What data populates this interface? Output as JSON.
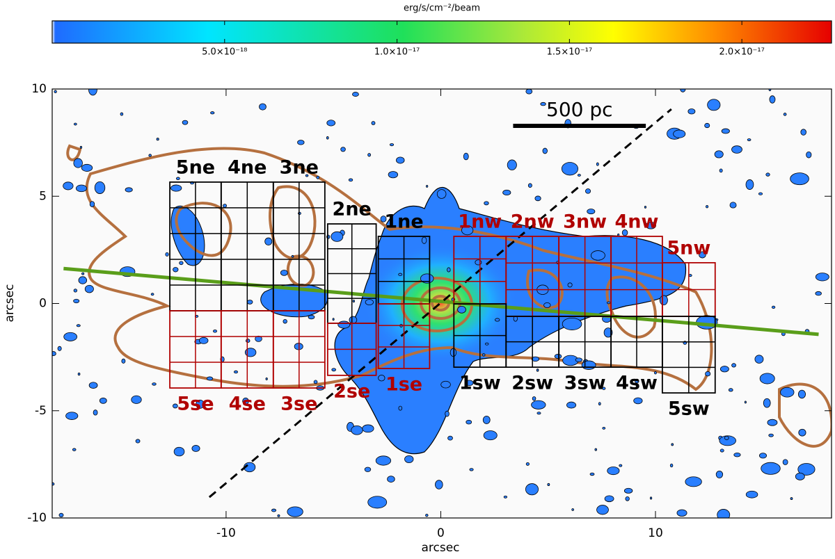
{
  "chart_data": {
    "type": "image",
    "colorbar": {
      "label": "erg/s/cm⁻²/beam",
      "clim": [
        0,
        2.26e-17
      ],
      "ticks": [
        {
          "value": 5e-18,
          "label": "5.0×10⁻¹⁸"
        },
        {
          "value": 1e-17,
          "label": "1.0×10⁻¹⁷"
        },
        {
          "value": 1.5e-17,
          "label": "1.5×10⁻¹⁷"
        },
        {
          "value": 2e-17,
          "label": "2.0×10⁻¹⁷"
        }
      ]
    },
    "xlabel": "arcsec",
    "ylabel": "arcsec",
    "xlim": [
      -18.1,
      18.2
    ],
    "ylim": [
      -10,
      10
    ],
    "xticks": [
      -10,
      0,
      10
    ],
    "yticks": [
      -10,
      -5,
      0,
      5,
      10
    ],
    "regions": [
      {
        "name": "5ne",
        "color": "#000000",
        "x": [
          -12.62,
          -10.23
        ],
        "y": [
          -0.34,
          5.66
        ]
      },
      {
        "name": "4ne",
        "color": "#000000",
        "x": [
          -10.23,
          -7.8
        ],
        "y": [
          -0.34,
          5.66
        ]
      },
      {
        "name": "3ne",
        "color": "#000000",
        "x": [
          -7.8,
          -5.4
        ],
        "y": [
          -0.34,
          5.66
        ]
      },
      {
        "name": "2ne",
        "color": "#000000",
        "x": [
          -5.27,
          -3.01
        ],
        "y": [
          -0.92,
          3.71
        ]
      },
      {
        "name": "1ne",
        "color": "#000000",
        "x": [
          -2.91,
          -0.52
        ],
        "y": [
          -0.02,
          3.13
        ]
      },
      {
        "name": "5se",
        "color": "#b00000",
        "x": [
          -12.62,
          -10.23
        ],
        "y": [
          -3.94,
          -0.34
        ]
      },
      {
        "name": "4se",
        "color": "#b00000",
        "x": [
          -10.23,
          -7.8
        ],
        "y": [
          -3.94,
          -0.34
        ]
      },
      {
        "name": "3se",
        "color": "#b00000",
        "x": [
          -7.8,
          -5.4
        ],
        "y": [
          -3.94,
          -0.34
        ]
      },
      {
        "name": "2se",
        "color": "#b00000",
        "x": [
          -5.27,
          -3.01
        ],
        "y": [
          -3.35,
          -0.92
        ]
      },
      {
        "name": "1se",
        "color": "#b00000",
        "x": [
          -2.91,
          -0.52
        ],
        "y": [
          -3.03,
          -0.02
        ]
      },
      {
        "name": "1nw",
        "color": "#b00000",
        "x": [
          0.61,
          3.04
        ],
        "y": [
          -0.02,
          3.13
        ]
      },
      {
        "name": "2nw",
        "color": "#b00000",
        "x": [
          3.04,
          5.5
        ],
        "y": [
          -0.6,
          3.13
        ]
      },
      {
        "name": "3nw",
        "color": "#b00000",
        "x": [
          5.5,
          7.93
        ],
        "y": [
          -0.6,
          3.13
        ]
      },
      {
        "name": "4nw",
        "color": "#b00000",
        "x": [
          7.93,
          10.32
        ],
        "y": [
          -0.6,
          3.13
        ]
      },
      {
        "name": "5nw",
        "color": "#b00000",
        "x": [
          10.32,
          12.78
        ],
        "y": [
          -0.6,
          1.9
        ]
      },
      {
        "name": "1sw",
        "color": "#000000",
        "x": [
          0.61,
          3.04
        ],
        "y": [
          -2.97,
          -0.02
        ]
      },
      {
        "name": "2sw",
        "color": "#000000",
        "x": [
          3.04,
          5.5
        ],
        "y": [
          -2.97,
          -0.6
        ]
      },
      {
        "name": "3sw",
        "color": "#000000",
        "x": [
          5.5,
          7.93
        ],
        "y": [
          -2.97,
          -0.6
        ]
      },
      {
        "name": "4sw",
        "color": "#000000",
        "x": [
          7.93,
          10.32
        ],
        "y": [
          -2.97,
          -0.6
        ]
      },
      {
        "name": "5sw",
        "color": "#000000",
        "x": [
          10.32,
          12.78
        ],
        "y": [
          -4.17,
          -0.6
        ]
      }
    ],
    "scale_bar": {
      "label": "500 pc",
      "x": [
        3.37,
        9.55
      ],
      "y": 8.28,
      "color": "#000000"
    },
    "lines": [
      {
        "x": [
          -17.57,
          17.6
        ],
        "y": [
          1.63,
          -1.44
        ],
        "color": "#5a9e1a",
        "dashed": false
      },
      {
        "x": [
          -10.78,
          10.74
        ],
        "y": [
          -9.03,
          9.06
        ],
        "color": "#000000",
        "dashed": true
      }
    ]
  }
}
